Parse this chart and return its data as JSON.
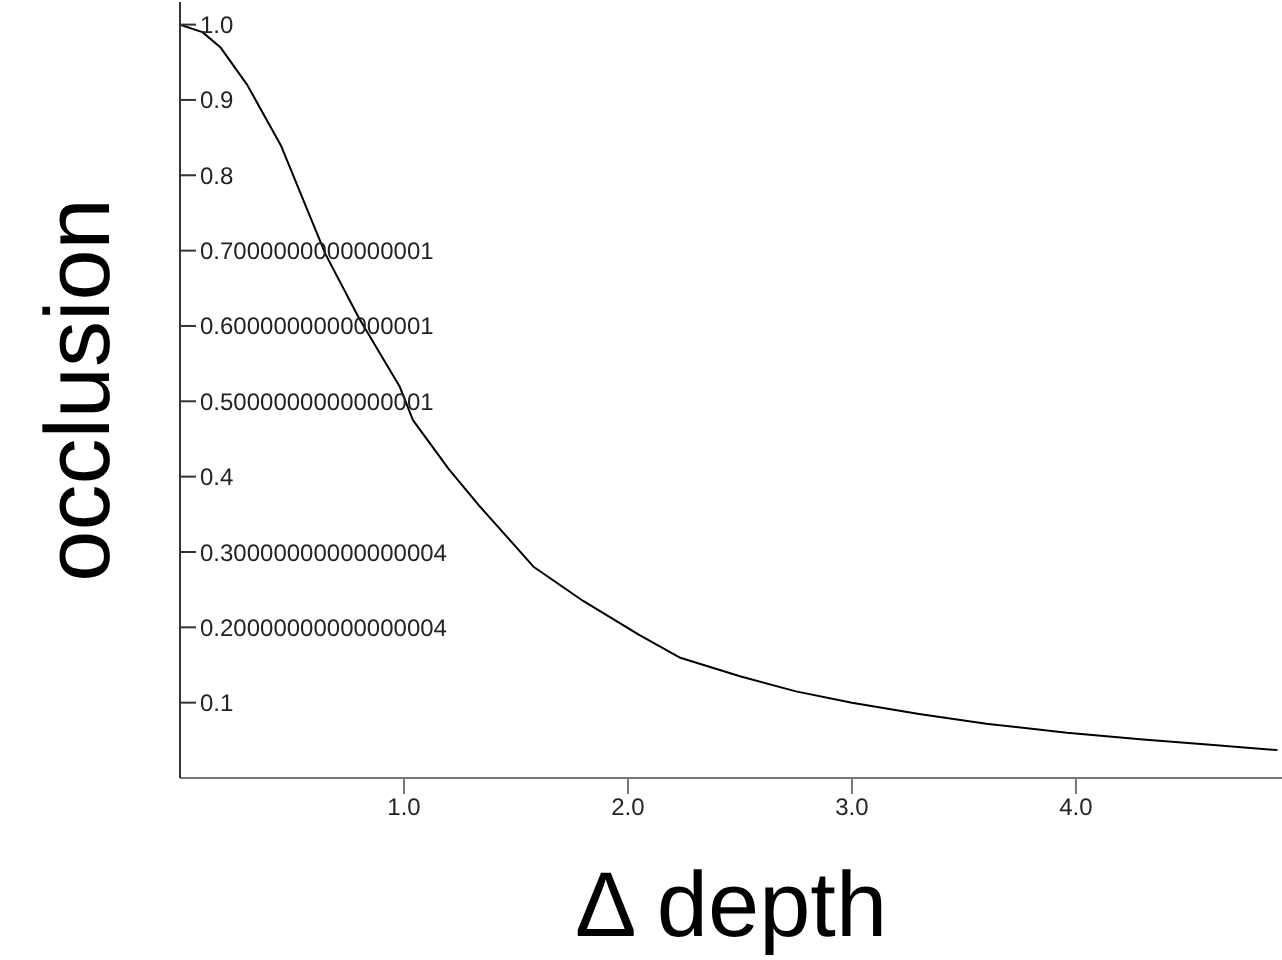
{
  "chart_data": {
    "type": "line",
    "xlabel": "Δ depth",
    "ylabel": "occlusion",
    "x": [
      0,
      0.1,
      0.18,
      0.3,
      0.45,
      0.65,
      0.8,
      0.98,
      1.04,
      1.2,
      1.34,
      1.58,
      1.8,
      2.05,
      2.23,
      2.5,
      2.75,
      3.0,
      3.3,
      3.6,
      3.96,
      4.3,
      4.6,
      4.9
    ],
    "series": [
      {
        "color": "#000000",
        "values": [
          1.0,
          0.99,
          0.97,
          0.92,
          0.84,
          0.695,
          0.61,
          0.52,
          0.475,
          0.41,
          0.36,
          0.28,
          0.235,
          0.19,
          0.16,
          0.135,
          0.115,
          0.1,
          0.085,
          0.072,
          0.06,
          0.051,
          0.044,
          0.037
        ]
      }
    ],
    "xlim": [
      0,
      4.92
    ],
    "ylim": [
      0,
      1.03
    ],
    "xticks": [
      {
        "value": 1,
        "label": "1.0"
      },
      {
        "value": 2,
        "label": "2.0"
      },
      {
        "value": 3,
        "label": "3.0"
      },
      {
        "value": 4,
        "label": "4.0"
      }
    ],
    "yticks": [
      0.1,
      {
        "value": 0.2,
        "label": "0.20000000000000004"
      },
      {
        "value": 0.3,
        "label": "0.30000000000000004"
      },
      0.4,
      {
        "value": 0.5,
        "label": "0.5000000000000001"
      },
      {
        "value": 0.6,
        "label": "0.6000000000000001"
      },
      {
        "value": 0.7,
        "label": "0.7000000000000001"
      },
      0.8,
      0.9,
      {
        "value": 1,
        "label": "1.0"
      }
    ],
    "grid": false,
    "legend": false,
    "marker": "none",
    "line_style": "solid"
  }
}
